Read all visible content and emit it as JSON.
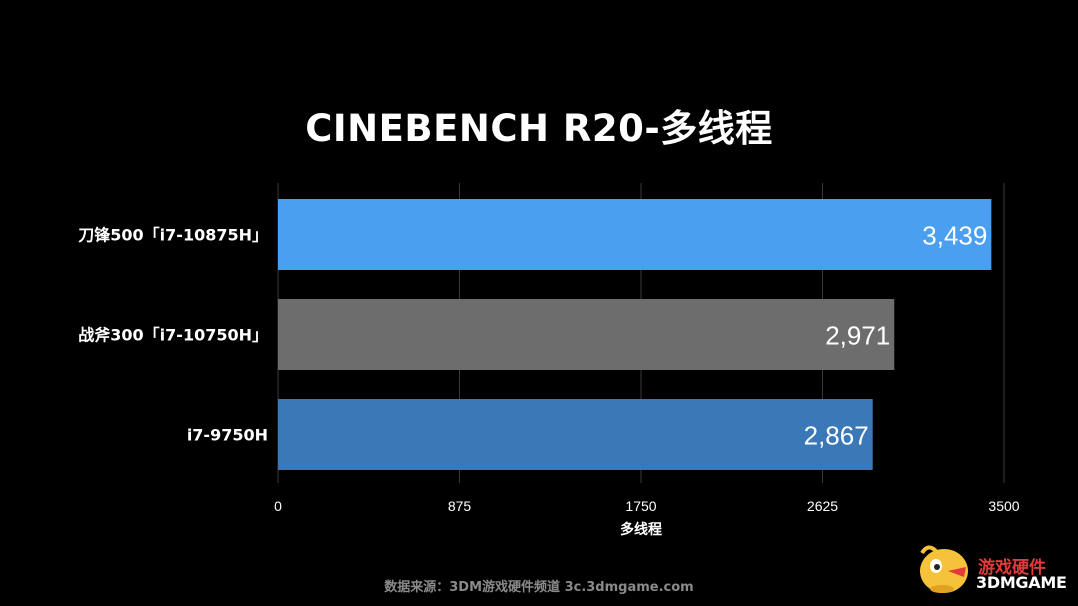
{
  "title": "CINEBENCH R20-多线程",
  "colors": {
    "background": "#000000",
    "bar_1": "#4a9ff0",
    "bar_2": "#6d6d6d",
    "bar_3": "#3a78b8",
    "grid": "#3a3a3a"
  },
  "chart_data": {
    "type": "bar",
    "orientation": "horizontal",
    "title": "CINEBENCH R20-多线程",
    "categories": [
      "刀锋500「i7-10875H」",
      "战斧300「i7-10750H」",
      "i7-9750H"
    ],
    "values": [
      3439,
      2971,
      2867
    ],
    "value_labels": [
      "3,439",
      "2,971",
      "2,867"
    ],
    "xlabel": "多线程",
    "ylabel": "",
    "xlim": [
      0,
      3500
    ],
    "xticks": [
      0,
      875,
      1750,
      2625,
      3500
    ],
    "xtick_labels": [
      "0",
      "875",
      "1750",
      "2625",
      "3500"
    ],
    "grid": true,
    "legend": "none"
  },
  "footer": {
    "source": "数据来源：3DM游戏硬件频道 3c.3dmgame.com"
  },
  "watermark": {
    "line1": "游戏硬件",
    "line2": "3DMGAME"
  }
}
